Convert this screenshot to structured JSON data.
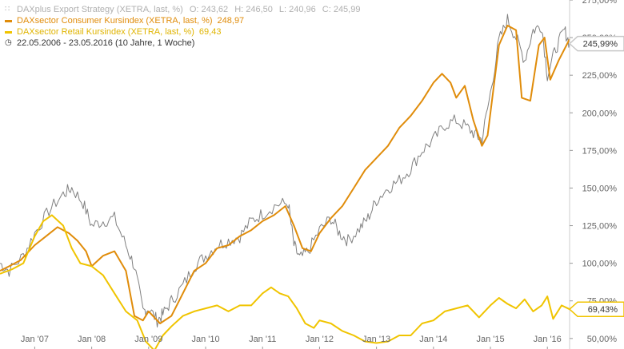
{
  "legend": {
    "rows": [
      {
        "name": "DAXplus Export Strategy (XETRA, last, %)",
        "color": "#b0b0b0",
        "o": "O: 243,62",
        "h": "H: 246,50",
        "l": "L: 240,96",
        "c": "C: 245,99",
        "icon": "bar-chart-icon"
      },
      {
        "name": "DAXsector Consumer Kursindex (XETRA, last, %)",
        "value": "248,97",
        "color": "#e08c0a"
      },
      {
        "name": "DAXsector Retail Kursindex (XETRA, last, %)",
        "value": "69,43",
        "color": "#f0c400"
      },
      {
        "name": "22.05.2006 - 23.05.2016 (10 Jahre, 1 Woche)",
        "icon": "clock-icon"
      }
    ]
  },
  "chart_data": {
    "type": "line",
    "x_tick_labels": [
      "Jan '07",
      "Jan '08",
      "Jan '09",
      "Jan '10",
      "Jan '11",
      "Jan '12",
      "Jan '13",
      "Jan '14",
      "Jan '15",
      "Jan '16"
    ],
    "x_tick_years": [
      2007,
      2008,
      2009,
      2010,
      2011,
      2012,
      2013,
      2014,
      2015,
      2016
    ],
    "xlim": [
      2006.39,
      2016.39
    ],
    "y_tick_labels": [
      "50,00%",
      "75,00%",
      "100,00%",
      "125,00%",
      "150,00%",
      "175,00%",
      "200,00%",
      "225,00%",
      "250,00%",
      "275,00%"
    ],
    "y_ticks": [
      50,
      75,
      100,
      125,
      150,
      175,
      200,
      225,
      250,
      275
    ],
    "ylim": [
      43,
      275
    ],
    "grid": false,
    "series": [
      {
        "name": "DAXplus Export Strategy",
        "color": "#808080",
        "noisy": true,
        "end_label": "245,99%",
        "end_value": 245.99,
        "flag_color": "#c8c8c8",
        "x": [
          2006.39,
          2006.55,
          2006.8,
          2007.0,
          2007.25,
          2007.5,
          2007.65,
          2007.85,
          2008.0,
          2008.2,
          2008.4,
          2008.6,
          2008.75,
          2008.9,
          2009.0,
          2009.15,
          2009.25,
          2009.4,
          2009.6,
          2009.8,
          2010.0,
          2010.2,
          2010.4,
          2010.6,
          2010.8,
          2011.0,
          2011.25,
          2011.45,
          2011.55,
          2011.65,
          2011.8,
          2012.0,
          2012.2,
          2012.35,
          2012.5,
          2012.7,
          2012.85,
          2013.0,
          2013.2,
          2013.4,
          2013.6,
          2013.8,
          2014.0,
          2014.2,
          2014.4,
          2014.6,
          2014.75,
          2014.85,
          2015.0,
          2015.15,
          2015.3,
          2015.45,
          2015.6,
          2015.75,
          2015.9,
          2016.0,
          2016.15,
          2016.3,
          2016.39
        ],
        "y": [
          100,
          95,
          105,
          120,
          135,
          146,
          150,
          140,
          125,
          128,
          130,
          112,
          98,
          68,
          70,
          62,
          66,
          75,
          85,
          98,
          105,
          112,
          115,
          118,
          128,
          133,
          139,
          140,
          112,
          103,
          108,
          122,
          130,
          120,
          115,
          123,
          130,
          142,
          150,
          155,
          163,
          175,
          182,
          192,
          195,
          190,
          185,
          182,
          213,
          248,
          262,
          250,
          235,
          255,
          258,
          225,
          243,
          255,
          245.99
        ]
      },
      {
        "name": "DAXsector Consumer Kursindex",
        "color": "#e08c0a",
        "noisy": false,
        "end_label": "",
        "end_value": 248.97,
        "x": [
          2006.39,
          2006.55,
          2006.75,
          2007.0,
          2007.2,
          2007.4,
          2007.6,
          2007.75,
          2007.9,
          2008.0,
          2008.2,
          2008.4,
          2008.6,
          2008.75,
          2008.9,
          2009.0,
          2009.2,
          2009.4,
          2009.6,
          2009.8,
          2010.0,
          2010.2,
          2010.4,
          2010.6,
          2010.8,
          2011.0,
          2011.2,
          2011.4,
          2011.55,
          2011.7,
          2011.85,
          2012.0,
          2012.2,
          2012.4,
          2012.6,
          2012.8,
          2013.0,
          2013.2,
          2013.4,
          2013.6,
          2013.8,
          2014.0,
          2014.15,
          2014.3,
          2014.4,
          2014.55,
          2014.7,
          2014.85,
          2014.95,
          2015.05,
          2015.15,
          2015.3,
          2015.45,
          2015.55,
          2015.7,
          2015.85,
          2015.95,
          2016.05,
          2016.2,
          2016.39
        ],
        "y": [
          95,
          98,
          102,
          112,
          118,
          124,
          120,
          115,
          108,
          98,
          105,
          108,
          95,
          65,
          62,
          68,
          60,
          65,
          80,
          95,
          100,
          110,
          112,
          118,
          122,
          128,
          132,
          138,
          125,
          110,
          108,
          120,
          130,
          138,
          150,
          162,
          170,
          178,
          190,
          198,
          208,
          220,
          226,
          220,
          210,
          218,
          195,
          178,
          185,
          215,
          245,
          258,
          255,
          210,
          208,
          245,
          250,
          222,
          235,
          248.97
        ]
      },
      {
        "name": "DAXsector Retail Kursindex",
        "color": "#f0c400",
        "noisy": false,
        "end_label": "69,43%",
        "end_value": 69.43,
        "flag_color": "#f0c400",
        "x": [
          2006.39,
          2006.6,
          2006.8,
          2007.0,
          2007.15,
          2007.3,
          2007.5,
          2007.65,
          2007.8,
          2008.0,
          2008.2,
          2008.4,
          2008.6,
          2008.8,
          2008.95,
          2009.1,
          2009.25,
          2009.4,
          2009.6,
          2009.8,
          2010.0,
          2010.2,
          2010.4,
          2010.6,
          2010.8,
          2011.0,
          2011.15,
          2011.3,
          2011.45,
          2011.6,
          2011.75,
          2011.9,
          2012.0,
          2012.2,
          2012.4,
          2012.6,
          2012.8,
          2013.0,
          2013.2,
          2013.4,
          2013.6,
          2013.8,
          2014.0,
          2014.2,
          2014.4,
          2014.6,
          2014.8,
          2015.0,
          2015.15,
          2015.3,
          2015.45,
          2015.6,
          2015.75,
          2015.9,
          2016.0,
          2016.1,
          2016.25,
          2016.39
        ],
        "y": [
          93,
          96,
          100,
          118,
          128,
          132,
          125,
          110,
          100,
          98,
          92,
          80,
          68,
          62,
          48,
          42,
          52,
          58,
          65,
          68,
          70,
          72,
          68,
          72,
          72,
          80,
          84,
          80,
          78,
          70,
          60,
          57,
          62,
          60,
          55,
          52,
          48,
          47,
          48,
          52,
          52,
          60,
          62,
          68,
          70,
          72,
          64,
          72,
          77,
          73,
          70,
          76,
          68,
          72,
          78,
          63,
          72,
          69.43
        ]
      }
    ]
  }
}
